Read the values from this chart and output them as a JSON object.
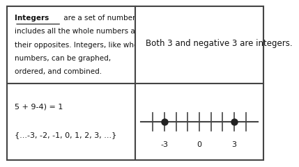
{
  "background_color": "#ffffff",
  "border_color": "#444444",
  "top_left_lines": [
    {
      "text": "Integers",
      "bold": true,
      "underline": true
    },
    {
      "text": " are a set of numbers that",
      "bold": false,
      "underline": false
    },
    {
      "text": "includes all the whole numbers and",
      "bold": false,
      "underline": false
    },
    {
      "text": "their opposites. Integers, like whole",
      "bold": false,
      "underline": false
    },
    {
      "text": "numbers, can be graphed,",
      "bold": false,
      "underline": false
    },
    {
      "text": "ordered, and combined.",
      "bold": false,
      "underline": false
    }
  ],
  "top_right_text": "Both 3 and negative 3 are integers.",
  "bottom_left_line1": "5 + 9-4) = 1",
  "bottom_left_line2": "{...-3, -2, -1, 0, 1, 2, 3, ...}",
  "number_line_ticks": [
    -4,
    -3,
    -2,
    -1,
    0,
    1,
    2,
    3,
    4
  ],
  "number_line_labels": [
    -3,
    0,
    3
  ],
  "number_line_dots": [
    -3,
    3
  ],
  "font_size_tl": 7.5,
  "font_size_tr": 8.5,
  "font_size_bl": 8.0,
  "font_size_nl": 8.0,
  "line_color": "#444444",
  "dot_color": "#222222"
}
